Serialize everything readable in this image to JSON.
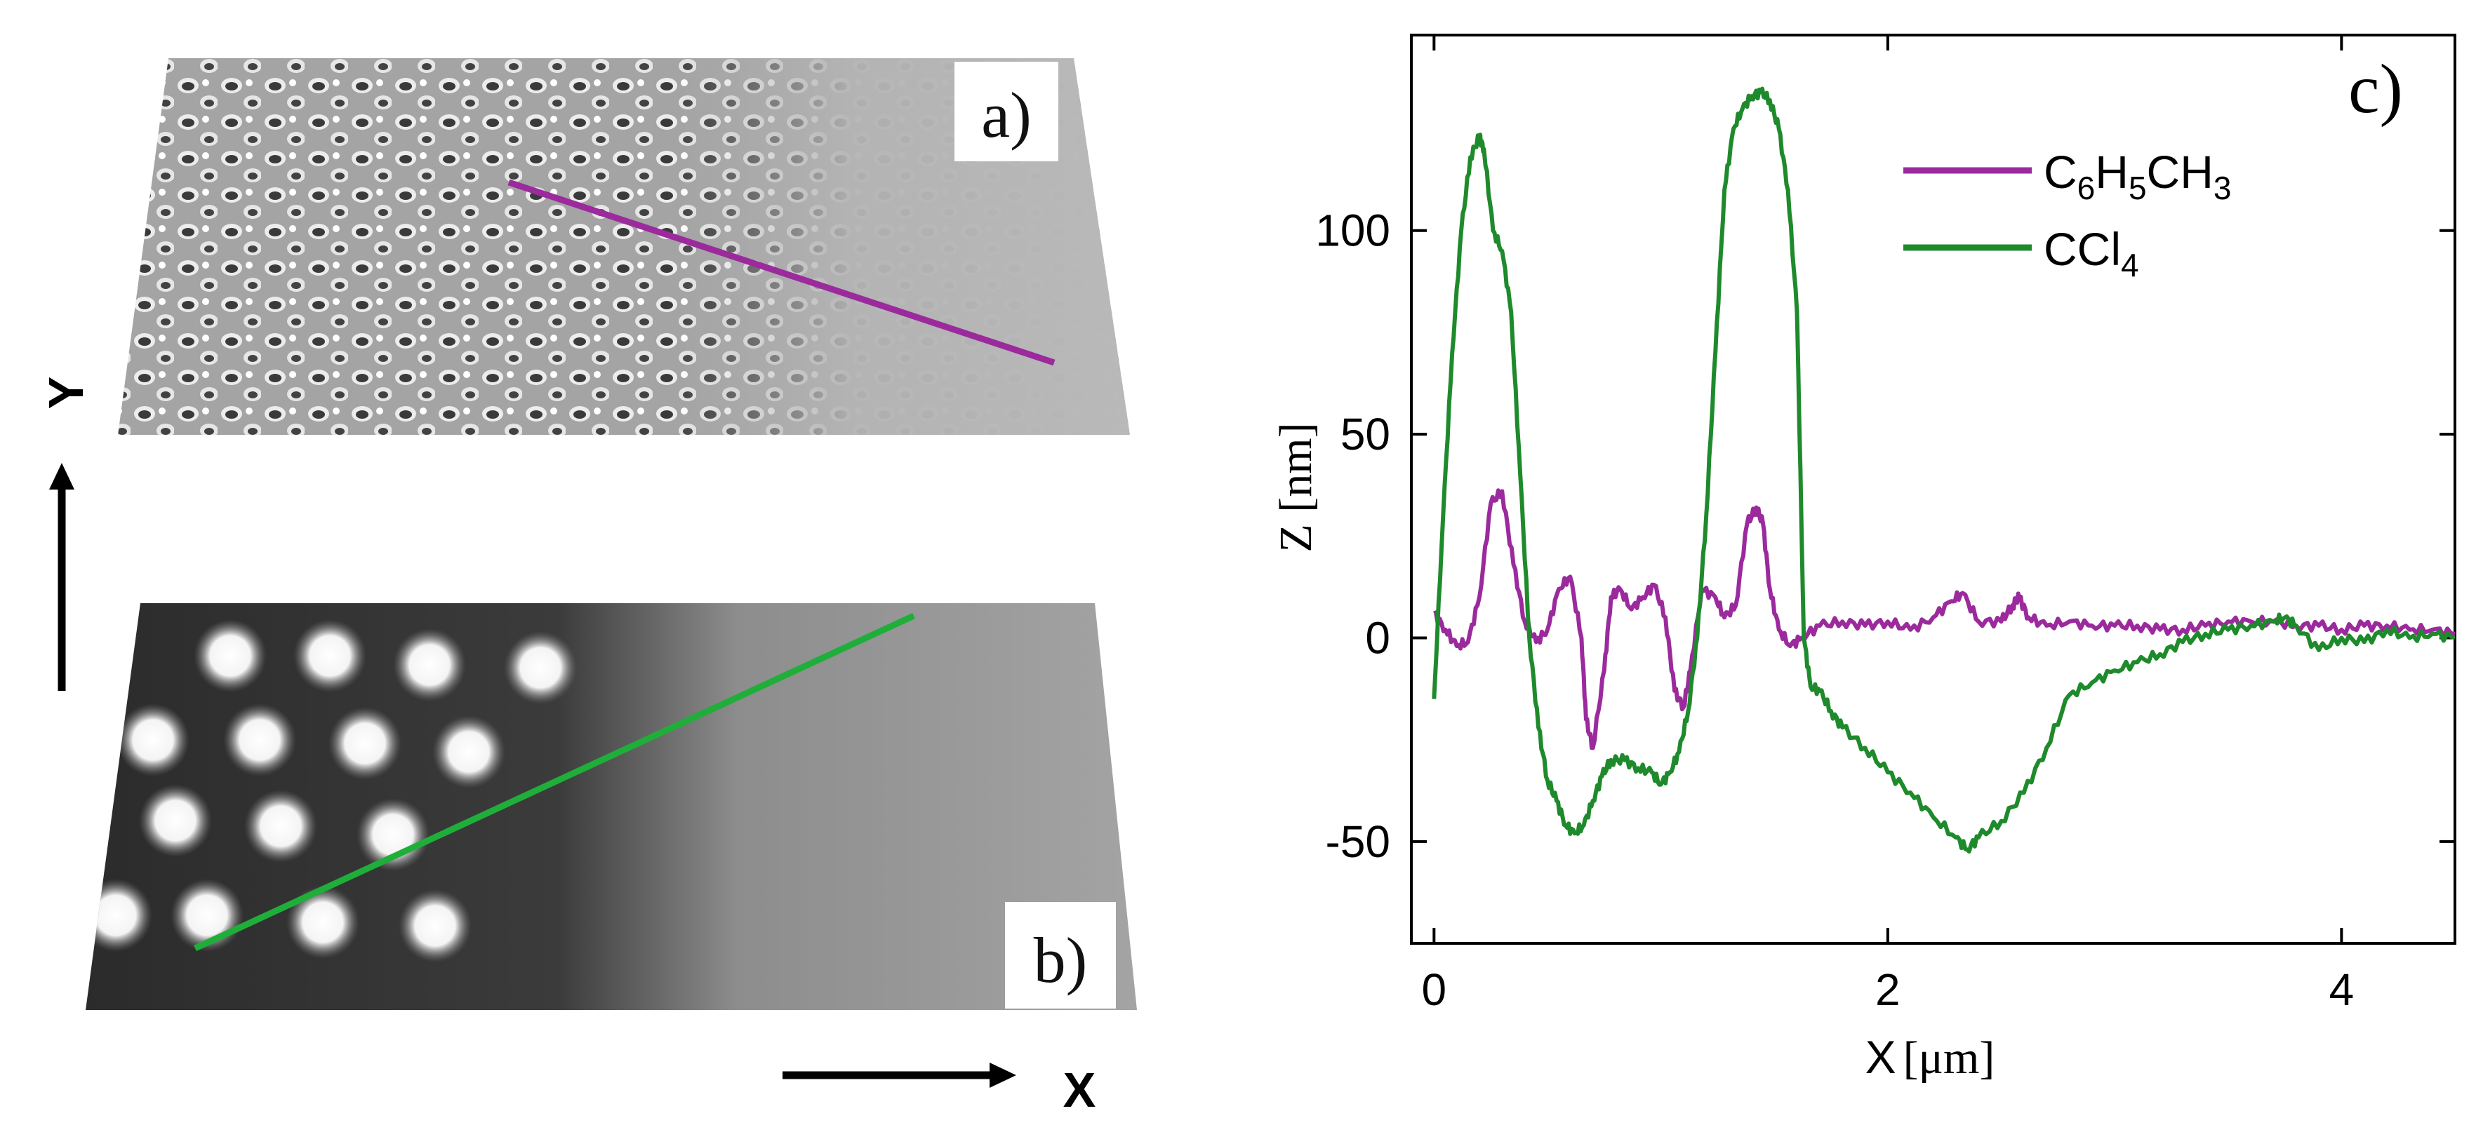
{
  "panels": {
    "a": {
      "label": "a)"
    },
    "b": {
      "label": "b)"
    },
    "c": {
      "label": "c)"
    }
  },
  "axes_arrows": {
    "x_label": "X",
    "y_label": "Y"
  },
  "chart_data": {
    "type": "line",
    "xlabel_main": "X",
    "xlabel_unit": "[μm]",
    "ylabel": "Z [nm]",
    "xlim": [
      -0.1,
      4.5
    ],
    "ylim": [
      -75,
      148
    ],
    "x_ticks": [
      0,
      2,
      4
    ],
    "x_tick_labels": [
      "0",
      "2",
      "4"
    ],
    "y_ticks": [
      -50,
      0,
      50,
      100
    ],
    "y_tick_labels": [
      "-50",
      "0",
      "50",
      "100"
    ],
    "legend": {
      "position": "top-right",
      "entries": [
        {
          "parts": [
            [
              "C",
              ""
            ],
            [
              "6",
              "sub"
            ],
            [
              "H",
              ""
            ],
            [
              "5",
              "sub"
            ],
            [
              "CH",
              ""
            ],
            [
              "3",
              "sub"
            ]
          ]
        },
        {
          "parts": [
            [
              "CCl",
              ""
            ],
            [
              "4",
              "sub"
            ]
          ]
        }
      ]
    },
    "series": [
      {
        "name": "C6H5CH3",
        "color": "#9b2a9d",
        "x": [
          0.0,
          0.05,
          0.1,
          0.15,
          0.2,
          0.25,
          0.3,
          0.35,
          0.4,
          0.45,
          0.5,
          0.55,
          0.6,
          0.65,
          0.67,
          0.7,
          0.75,
          0.78,
          0.82,
          0.87,
          0.92,
          0.97,
          1.02,
          1.06,
          1.1,
          1.13,
          1.18,
          1.24,
          1.28,
          1.33,
          1.38,
          1.42,
          1.45,
          1.48,
          1.52,
          1.57,
          1.62,
          1.7,
          1.8,
          1.9,
          2.0,
          2.1,
          2.2,
          2.28,
          2.33,
          2.4,
          2.5,
          2.55,
          2.58,
          2.62,
          2.7,
          2.8,
          2.9,
          3.0,
          3.1,
          3.2,
          3.3,
          3.4,
          3.5,
          3.6,
          3.7,
          3.8,
          3.9,
          4.0,
          4.1,
          4.2,
          4.3,
          4.4,
          4.5
        ],
        "y": [
          6,
          2,
          -2,
          -1,
          10,
          33,
          36,
          18,
          4,
          -1,
          2,
          12,
          15,
          0,
          -20,
          -27,
          -8,
          10,
          12,
          7,
          10,
          13,
          5,
          -13,
          -17,
          -8,
          12,
          10,
          5,
          8,
          28,
          32,
          28,
          12,
          2,
          -2,
          0,
          3,
          4,
          3,
          4,
          2,
          5,
          9,
          11,
          4,
          4,
          8,
          10,
          5,
          3,
          4,
          3,
          3,
          3,
          2,
          2,
          3,
          4,
          4,
          4,
          3,
          3,
          2,
          3,
          3,
          2,
          2,
          1
        ]
      },
      {
        "name": "CCl4",
        "color": "#1f8a2c",
        "x": [
          0.0,
          0.04,
          0.08,
          0.12,
          0.16,
          0.2,
          0.22,
          0.26,
          0.3,
          0.34,
          0.38,
          0.42,
          0.46,
          0.5,
          0.54,
          0.58,
          0.62,
          0.66,
          0.7,
          0.74,
          0.78,
          0.84,
          0.9,
          0.96,
          1.0,
          1.04,
          1.08,
          1.12,
          1.16,
          1.2,
          1.24,
          1.28,
          1.32,
          1.36,
          1.4,
          1.44,
          1.48,
          1.52,
          1.56,
          1.6,
          1.63,
          1.66,
          1.7,
          1.75,
          1.8,
          1.9,
          2.0,
          2.1,
          2.2,
          2.3,
          2.35,
          2.4,
          2.5,
          2.6,
          2.7,
          2.8,
          2.9,
          3.0,
          3.1,
          3.2,
          3.3,
          3.4,
          3.5,
          3.6,
          3.7,
          3.75,
          3.8,
          3.9,
          4.0,
          4.1,
          4.2,
          4.3,
          4.4,
          4.5
        ],
        "y": [
          -15,
          30,
          70,
          100,
          118,
          123,
          120,
          100,
          95,
          80,
          40,
          0,
          -22,
          -35,
          -40,
          -46,
          -48,
          -46,
          -40,
          -34,
          -30,
          -30,
          -32,
          -33,
          -36,
          -33,
          -28,
          -18,
          0,
          30,
          70,
          110,
          125,
          130,
          133,
          134,
          132,
          125,
          110,
          80,
          0,
          -12,
          -13,
          -18,
          -22,
          -27,
          -33,
          -38,
          -44,
          -49,
          -52,
          -49,
          -45,
          -38,
          -27,
          -14,
          -11,
          -8,
          -6,
          -4,
          -1,
          1,
          2,
          3,
          4,
          5,
          3,
          -3,
          0,
          -1,
          2,
          0,
          1,
          0
        ]
      }
    ]
  }
}
